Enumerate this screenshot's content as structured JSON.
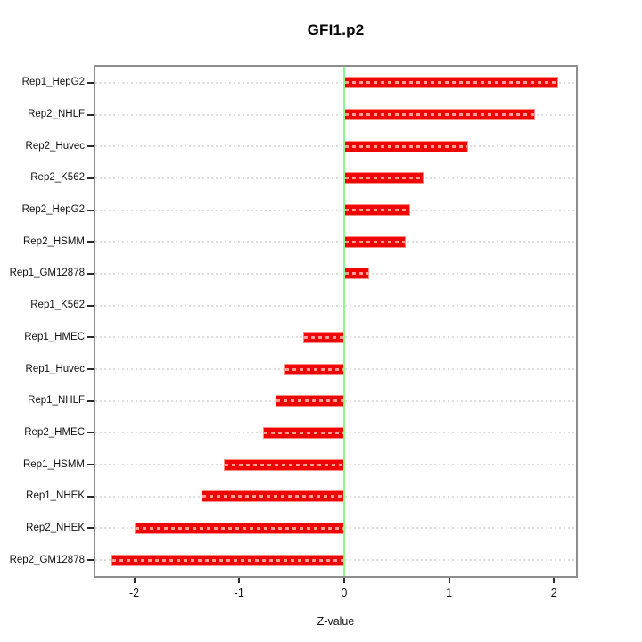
{
  "chart_data": {
    "type": "bar",
    "orientation": "horizontal",
    "title": "GFI1.p2",
    "xlabel": "Z-value",
    "categories": [
      "Rep1_HepG2",
      "Rep2_NHLF",
      "Rep2_Huvec",
      "Rep2_K562",
      "Rep2_HepG2",
      "Rep2_HSMM",
      "Rep1_GM12878",
      "Rep1_K562",
      "Rep1_HMEC",
      "Rep1_Huvec",
      "Rep1_NHLF",
      "Rep2_HMEC",
      "Rep1_HSMM",
      "Rep1_NHEK",
      "Rep2_NHEK",
      "Rep2_GM12878"
    ],
    "values": [
      2.04,
      1.82,
      1.18,
      0.76,
      0.63,
      0.59,
      0.24,
      -0.01,
      -0.39,
      -0.57,
      -0.65,
      -0.77,
      -1.15,
      -1.36,
      -2.0,
      -2.22
    ],
    "xticks": [
      "-2",
      "-1",
      "0",
      "1",
      "2"
    ],
    "xtick_values": [
      -2,
      -1,
      0,
      1,
      2
    ],
    "xlim": [
      -2.37,
      2.21
    ],
    "reference_line_x": 0,
    "grid": "dotted-horizontal-per-category",
    "legend": "none",
    "colors": {
      "bar_fill": "#ee0500",
      "bar_border": "#ff8d86",
      "bar_dash_overlay": "#ff9d96",
      "zero_line": "#8cf78c",
      "gridline": "#dedede",
      "plot_border": "#8e8e8e",
      "text": "#111111",
      "background": "#ffffff"
    }
  }
}
